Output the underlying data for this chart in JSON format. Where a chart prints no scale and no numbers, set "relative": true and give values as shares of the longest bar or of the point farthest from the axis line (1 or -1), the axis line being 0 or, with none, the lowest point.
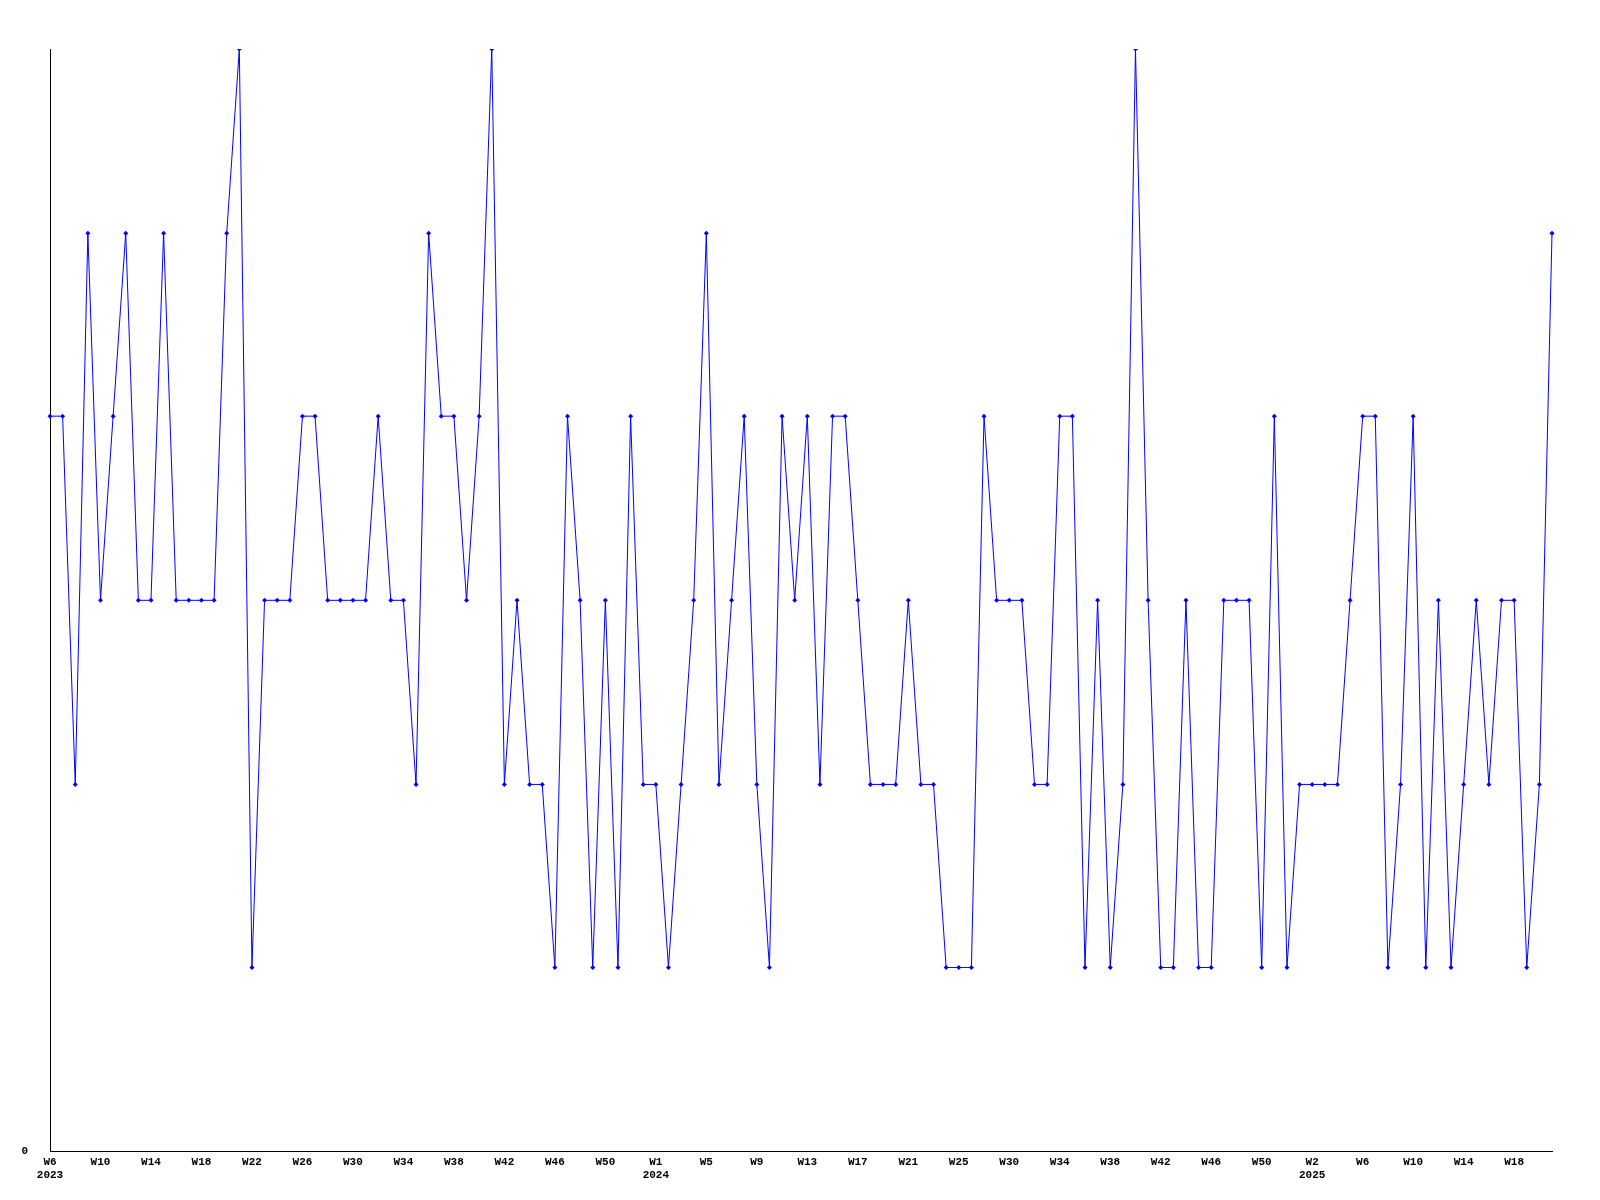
{
  "chart_data": {
    "type": "line",
    "relative": true,
    "marker": "diamond",
    "grid": false,
    "legend": false,
    "annotations": [
      "0"
    ],
    "categories": [
      "W6\n2023",
      null,
      null,
      null,
      "W10",
      null,
      null,
      null,
      "W14",
      null,
      null,
      null,
      "W18",
      null,
      null,
      null,
      "W22",
      null,
      null,
      null,
      "W26",
      null,
      null,
      null,
      "W30",
      null,
      null,
      null,
      "W34",
      null,
      null,
      null,
      "W38",
      null,
      null,
      null,
      "W42",
      null,
      null,
      null,
      "W46",
      null,
      null,
      null,
      "W50",
      null,
      null,
      null,
      "W1\n2024",
      null,
      null,
      null,
      "W5",
      null,
      null,
      null,
      "W9",
      null,
      null,
      null,
      "W13",
      null,
      null,
      null,
      "W17",
      null,
      null,
      null,
      "W21",
      null,
      null,
      null,
      "W25",
      null,
      null,
      null,
      "W30",
      null,
      null,
      null,
      "W34",
      null,
      null,
      null,
      "W38",
      null,
      null,
      null,
      "W42",
      null,
      null,
      null,
      "W46",
      null,
      null,
      null,
      "W50",
      null,
      null,
      null,
      "W2\n2025",
      null,
      null,
      null,
      "W6",
      null,
      null,
      null,
      "W10",
      null,
      null,
      null,
      "W14",
      null,
      null,
      null,
      "W18",
      null,
      null,
      null
    ],
    "series": [
      {
        "color": "#0000ff",
        "values": [
          0.667,
          0.667,
          0.333,
          0.833,
          0.5,
          0.667,
          0.833,
          0.5,
          0.5,
          0.833,
          0.5,
          0.5,
          0.5,
          0.5,
          0.833,
          1,
          0.167,
          0.5,
          0.5,
          0.5,
          0.667,
          0.667,
          0.5,
          0.5,
          0.5,
          0.5,
          0.667,
          0.5,
          0.5,
          0.333,
          0.833,
          0.667,
          0.667,
          0.5,
          0.667,
          1,
          0.333,
          0.5,
          0.333,
          0.333,
          0.167,
          0.667,
          0.5,
          0.167,
          0.5,
          0.167,
          0.667,
          0.333,
          0.333,
          0.167,
          0.333,
          0.5,
          0.833,
          0.333,
          0.5,
          0.667,
          0.333,
          0.167,
          0.667,
          0.5,
          0.667,
          0.333,
          0.667,
          0.667,
          0.5,
          0.333,
          0.333,
          0.333,
          0.5,
          0.333,
          0.333,
          0.167,
          0.167,
          0.167,
          0.667,
          0.5,
          0.5,
          0.5,
          0.333,
          0.333,
          0.667,
          0.667,
          0.167,
          0.5,
          0.167,
          0.333,
          1,
          0.5,
          0.167,
          0.167,
          0.5,
          0.167,
          0.167,
          0.5,
          0.5,
          0.5,
          0.167,
          0.667,
          0.167,
          0.333,
          0.333,
          0.333,
          0.333,
          0.5,
          0.667,
          0.667,
          0.167,
          0.333,
          0.667,
          0.167,
          0.5,
          0.167,
          0.333,
          0.5,
          0.333,
          0.5,
          0.5,
          0.167,
          0.333,
          0.833
        ]
      }
    ]
  }
}
